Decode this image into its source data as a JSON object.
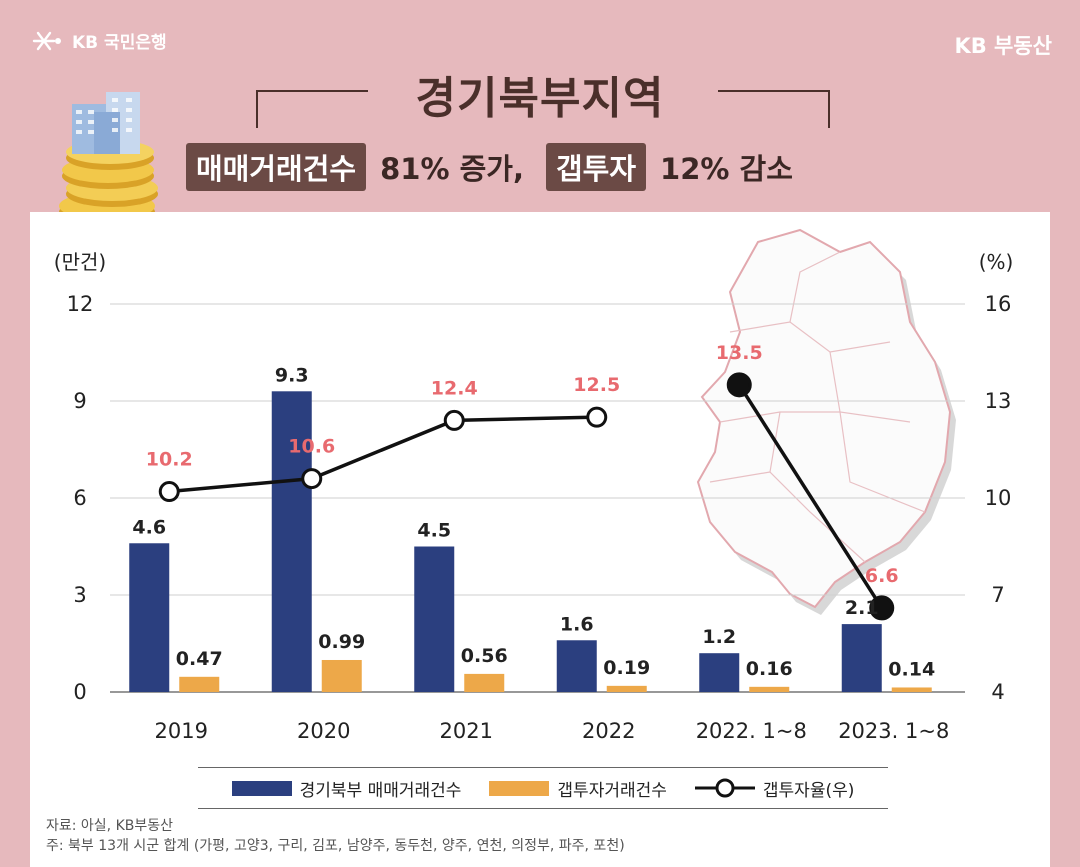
{
  "brand": {
    "left": "KB 국민은행",
    "right": "KB 부동산"
  },
  "title": "경기북부지역",
  "subtitle": {
    "tag1": "매매거래건수",
    "text1": "81% 증가,",
    "tag2": "갭투자",
    "text2": "12% 감소"
  },
  "colors": {
    "bar1": "#2b3f7f",
    "bar2": "#eda849",
    "line": "#111111",
    "rate_label": "#e86a6f",
    "background": "#e6b9bd"
  },
  "chart_data": {
    "type": "bar",
    "categories": [
      "2019",
      "2020",
      "2021",
      "2022",
      "2022. 1~8",
      "2023. 1~8"
    ],
    "left_axis": {
      "label": "(만건)",
      "ylim": [
        0,
        12
      ],
      "ticks": [
        "0",
        "3",
        "6",
        "9",
        "12"
      ]
    },
    "right_axis": {
      "label": "(%)",
      "ylim": [
        4,
        16
      ],
      "ticks": [
        "4",
        "7",
        "10",
        "13",
        "16"
      ]
    },
    "series": [
      {
        "name": "경기북부 매매거래건수",
        "type": "bar",
        "axis": "left",
        "values": [
          4.6,
          9.3,
          4.5,
          1.6,
          1.2,
          2.1
        ],
        "labels": [
          "4.6",
          "9.3",
          "4.5",
          "1.6",
          "1.2",
          "2.1"
        ]
      },
      {
        "name": "갭투자거래건수",
        "type": "bar",
        "axis": "left",
        "values": [
          0.47,
          0.99,
          0.56,
          0.19,
          0.16,
          0.14
        ],
        "labels": [
          "0.47",
          "0.99",
          "0.56",
          "0.19",
          "0.16",
          "0.14"
        ]
      },
      {
        "name": "갭투자율(우)",
        "type": "line",
        "axis": "right",
        "values": [
          10.2,
          10.6,
          12.4,
          12.5,
          13.5,
          6.6
        ],
        "labels": [
          "10.2",
          "10.6",
          "12.4",
          "12.5",
          "13.5",
          "6.6"
        ],
        "segments": [
          [
            0,
            3
          ],
          [
            4,
            5
          ]
        ]
      }
    ],
    "grid": true,
    "legend": "bottom"
  },
  "source": {
    "line1": "자료: 아실, KB부동산",
    "line2": "주: 북부 13개 시군 합계 (가평, 고양3, 구리, 김포, 남양주, 동두천, 양주, 연천, 의정부, 파주, 포천)"
  }
}
